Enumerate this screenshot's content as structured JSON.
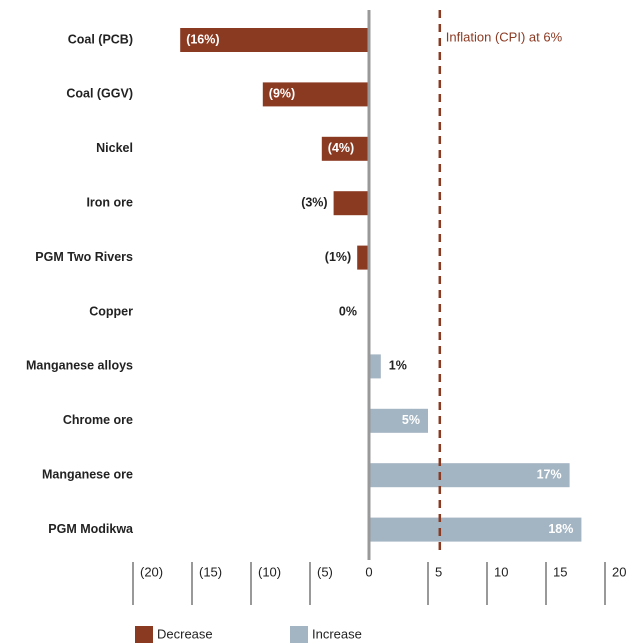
{
  "chart_data": {
    "type": "hbar",
    "categories": [
      "Coal (PCB)",
      "Coal (GGV)",
      "Nickel",
      "Iron ore",
      "PGM Two Rivers",
      "Copper",
      "Manganese alloys",
      "Chrome ore",
      "Manganese ore",
      "PGM Modikwa"
    ],
    "values": [
      -16,
      -9,
      -4,
      -3,
      -1,
      0,
      1,
      5,
      17,
      18
    ],
    "value_labels": [
      "(16%)",
      "(9%)",
      "(4%)",
      "(3%)",
      "(1%)",
      "0%",
      "1%",
      "5%",
      "17%",
      "18%"
    ],
    "xlim": [
      -20,
      20
    ],
    "xticks": [
      {
        "value": -20,
        "label": "(20)"
      },
      {
        "value": -15,
        "label": "(15)"
      },
      {
        "value": -10,
        "label": "(10)"
      },
      {
        "value": -5,
        "label": "(5)"
      },
      0,
      5,
      10,
      15,
      20
    ],
    "reference_line": {
      "value": 6,
      "label": "Inflation (CPI) at 6%",
      "color": "#8b3a22"
    },
    "legend": [
      {
        "label": "Decrease",
        "color": "#8b3a22"
      },
      {
        "label": "Increase",
        "color": "#a3b4c2"
      }
    ]
  }
}
